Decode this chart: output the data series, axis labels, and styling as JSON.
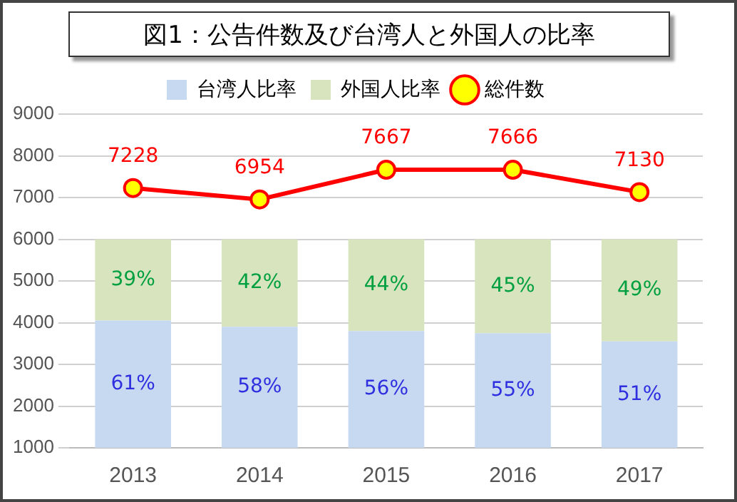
{
  "chart_data": {
    "type": "bar",
    "title": "図1：公告件数及び台湾人と外国人の比率",
    "categories": [
      "2013",
      "2014",
      "2015",
      "2016",
      "2017"
    ],
    "stacked": true,
    "series": [
      {
        "name": "台湾人比率",
        "color": "#c6d9f1",
        "values": [
          61,
          58,
          56,
          55,
          51
        ],
        "value_labels": [
          "61%",
          "58%",
          "56%",
          "55%",
          "51%"
        ],
        "axis": "y2"
      },
      {
        "name": "外国人比率",
        "color": "#d7e4bd",
        "values": [
          39,
          42,
          44,
          45,
          49
        ],
        "value_labels": [
          "39%",
          "42%",
          "44%",
          "45%",
          "49%"
        ],
        "axis": "y2"
      },
      {
        "name": "総件数",
        "type": "line",
        "color": "#ff0000",
        "values": [
          7228,
          6954,
          7667,
          7666,
          7130
        ]
      }
    ],
    "ylim": [
      1000,
      9000
    ],
    "yticks": [
      1000,
      2000,
      3000,
      4000,
      5000,
      6000,
      7000,
      8000,
      9000
    ],
    "y2lim": [
      0,
      160
    ],
    "grid": "y",
    "legend": "top",
    "marker": "circle",
    "data_labels": true
  }
}
